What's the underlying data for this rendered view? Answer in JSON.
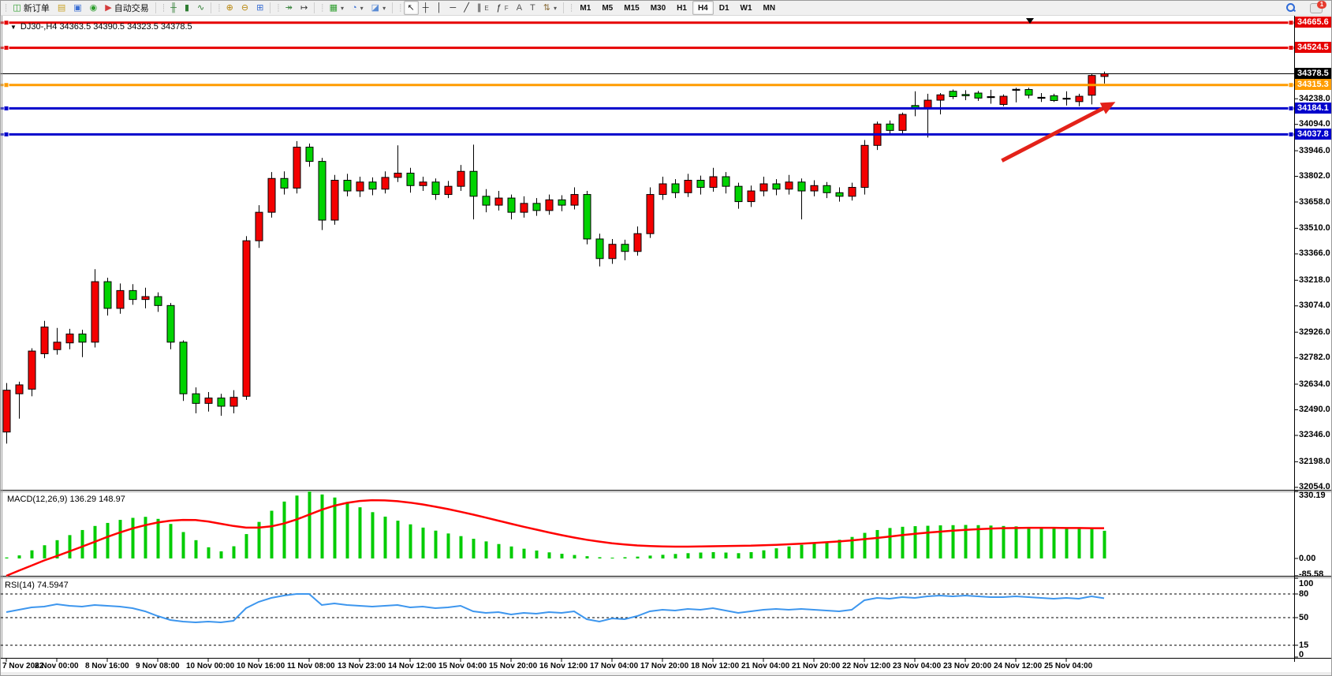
{
  "toolbar": {
    "groups": [
      {
        "name": "trade",
        "items": [
          {
            "name": "new-order-button",
            "glyph": "◫",
            "color": "#2e9e2e",
            "label": "新订单"
          },
          {
            "name": "market-depth-button",
            "glyph": "▤",
            "color": "#c9a227"
          },
          {
            "name": "terminal-button",
            "glyph": "▣",
            "color": "#3b6fd4"
          },
          {
            "name": "navigator-button",
            "glyph": "◉",
            "color": "#2e9e2e"
          },
          {
            "name": "autotrading-button",
            "glyph": "▶",
            "color": "#d43b3b",
            "label": "自动交易"
          }
        ]
      },
      {
        "name": "chart-type",
        "items": [
          {
            "name": "bar-chart-button",
            "glyph": "╫",
            "color": "#2e7d32"
          },
          {
            "name": "candlestick-button",
            "glyph": "▮",
            "color": "#2e7d32"
          },
          {
            "name": "line-chart-button",
            "glyph": "∿",
            "color": "#2e7d32"
          }
        ]
      },
      {
        "name": "zoom",
        "items": [
          {
            "name": "zoom-in-button",
            "glyph": "⊕",
            "color": "#b8860b"
          },
          {
            "name": "zoom-out-button",
            "glyph": "⊖",
            "color": "#b8860b"
          },
          {
            "name": "tile-windows-button",
            "glyph": "⊞",
            "color": "#3b6fd4"
          }
        ]
      },
      {
        "name": "scroll",
        "items": [
          {
            "name": "auto-scroll-button",
            "glyph": "↠",
            "color": "#2e7d32"
          },
          {
            "name": "chart-shift-button",
            "glyph": "↦",
            "color": "#333333"
          }
        ]
      },
      {
        "name": "add",
        "items": [
          {
            "name": "new-chart-button",
            "glyph": "▦",
            "color": "#2e9e2e",
            "dropdown": true
          },
          {
            "name": "profiles-button",
            "glyph": "◔",
            "color": "#3b6fd4",
            "dropdown": true
          },
          {
            "name": "templates-button",
            "glyph": "◪",
            "color": "#5a8bd4",
            "dropdown": true
          }
        ]
      },
      {
        "name": "draw",
        "items": [
          {
            "name": "cursor-button",
            "glyph": "↖",
            "color": "#222222",
            "active": true
          },
          {
            "name": "crosshair-button",
            "glyph": "┼",
            "color": "#222222"
          },
          {
            "name": "vertical-line-button",
            "glyph": "│",
            "color": "#222222"
          },
          {
            "name": "horizontal-line-button",
            "glyph": "─",
            "color": "#222222"
          },
          {
            "name": "trendline-button",
            "glyph": "╱",
            "color": "#222222"
          },
          {
            "name": "channel-button",
            "glyph": "∥",
            "color": "#222222",
            "sub": "E"
          },
          {
            "name": "fibonacci-button",
            "glyph": "ƒ",
            "color": "#222222",
            "sub": "F"
          },
          {
            "name": "text-button",
            "glyph": "A",
            "color": "#555555"
          },
          {
            "name": "label-button",
            "glyph": "T",
            "color": "#555555"
          },
          {
            "name": "arrows-button",
            "glyph": "⇅",
            "color": "#8a6d3b",
            "dropdown": true
          }
        ]
      },
      {
        "name": "timeframes",
        "items": [
          {
            "name": "timeframe-m1-button",
            "label": "M1"
          },
          {
            "name": "timeframe-m5-button",
            "label": "M5"
          },
          {
            "name": "timeframe-m15-button",
            "label": "M15"
          },
          {
            "name": "timeframe-m30-button",
            "label": "M30"
          },
          {
            "name": "timeframe-h1-button",
            "label": "H1"
          },
          {
            "name": "timeframe-h4-button",
            "label": "H4",
            "active": true
          },
          {
            "name": "timeframe-d1-button",
            "label": "D1"
          },
          {
            "name": "timeframe-w1-button",
            "label": "W1"
          },
          {
            "name": "timeframe-mn-button",
            "label": "MN"
          }
        ]
      }
    ],
    "right": {
      "alerts_badge": "1"
    }
  },
  "chart": {
    "dropdown_glyph": "▼",
    "title_display": "DJ30-,H4  34363.5 34390.5 34323.5 34378.5",
    "symbol": "DJ30-",
    "period": "H4",
    "ohlc": {
      "open": "34363.5",
      "high": "34390.5",
      "low": "34323.5",
      "close": "34378.5"
    }
  },
  "price_axis": {
    "badges": [
      {
        "label": "34665.6",
        "price": 34665.6,
        "bg": "#e60000"
      },
      {
        "label": "34524.5",
        "price": 34524.5,
        "bg": "#e60000"
      },
      {
        "label": "34378.5",
        "price": 34378.5,
        "bg": "#000000"
      },
      {
        "label": "34315.3",
        "price": 34315.3,
        "bg": "#ff9c00"
      },
      {
        "label": "34184.1",
        "price": 34184.1,
        "bg": "#0000cc"
      },
      {
        "label": "34037.8",
        "price": 34037.8,
        "bg": "#0000cc"
      }
    ],
    "ticks": [
      "34238.0",
      "34094.0",
      "33946.0",
      "33802.0",
      "33658.0",
      "33510.0",
      "33366.0",
      "33218.0",
      "33074.0",
      "32926.0",
      "32782.0",
      "32634.0",
      "32490.0",
      "32346.0",
      "32198.0",
      "32054.0"
    ]
  },
  "time_axis": {
    "labels": [
      "7 Nov 2022",
      "8 Nov 00:00",
      "8 Nov 16:00",
      "9 Nov 08:00",
      "10 Nov 00:00",
      "10 Nov 16:00",
      "11 Nov 08:00",
      "13 Nov 23:00",
      "14 Nov 12:00",
      "15 Nov 04:00",
      "15 Nov 20:00",
      "16 Nov 12:00",
      "17 Nov 04:00",
      "17 Nov 20:00",
      "18 Nov 12:00",
      "21 Nov 04:00",
      "21 Nov 20:00",
      "22 Nov 12:00",
      "23 Nov 04:00",
      "23 Nov 20:00",
      "24 Nov 12:00",
      "25 Nov 04:00"
    ]
  },
  "indicators": {
    "macd": {
      "label_display": "MACD(12,26,9) 136.29 148.97",
      "name": "MACD(12,26,9)",
      "main_value": "136.29",
      "signal_value": "148.97",
      "axis_labels": [
        {
          "label": "330.19",
          "v": 330.19
        },
        {
          "label": "0.00",
          "v": 0
        },
        {
          "label": "-85.58",
          "v": -85.58
        }
      ]
    },
    "rsi": {
      "label_display": "RSI(14) 74.5947",
      "name": "RSI(14)",
      "value": "74.5947",
      "axis_labels": [
        {
          "label": "100",
          "v": 100
        },
        {
          "label": "80",
          "v": 80
        },
        {
          "label": "50",
          "v": 50
        },
        {
          "label": "15",
          "v": 15
        },
        {
          "label": "0",
          "v": 0
        }
      ],
      "dashed_levels": [
        80,
        50,
        15
      ]
    }
  },
  "chart_data": {
    "type": "candlestick",
    "title": "DJ30-,H4",
    "ylim": [
      32040,
      34700
    ],
    "grid": false,
    "bull_color": "#f40000",
    "bear_color": "#00d300",
    "doji_color": "#000000",
    "candles": [
      [
        32365,
        32640,
        32300,
        32600
      ],
      [
        32580,
        32648,
        32440,
        32630
      ],
      [
        32606,
        32836,
        32566,
        32820
      ],
      [
        32805,
        32990,
        32780,
        32955
      ],
      [
        32828,
        32950,
        32800,
        32870
      ],
      [
        32866,
        32945,
        32830,
        32916
      ],
      [
        32916,
        32940,
        32786,
        32870
      ],
      [
        32870,
        33280,
        32840,
        33210
      ],
      [
        33210,
        33232,
        33020,
        33060
      ],
      [
        33060,
        33200,
        33030,
        33160
      ],
      [
        33160,
        33196,
        33080,
        33110
      ],
      [
        33110,
        33176,
        33060,
        33126
      ],
      [
        33126,
        33150,
        33040,
        33076
      ],
      [
        33076,
        33090,
        32830,
        32870
      ],
      [
        32870,
        32880,
        32540,
        32580
      ],
      [
        32580,
        32616,
        32470,
        32526
      ],
      [
        32526,
        32590,
        32480,
        32556
      ],
      [
        32556,
        32580,
        32456,
        32510
      ],
      [
        32510,
        32600,
        32470,
        32560
      ],
      [
        32566,
        33466,
        32546,
        33440
      ],
      [
        33440,
        33640,
        33400,
        33600
      ],
      [
        33600,
        33826,
        33570,
        33790
      ],
      [
        33790,
        33830,
        33700,
        33736
      ],
      [
        33736,
        34000,
        33706,
        33966
      ],
      [
        33966,
        33986,
        33856,
        33886
      ],
      [
        33886,
        33906,
        33500,
        33556
      ],
      [
        33556,
        33810,
        33530,
        33780
      ],
      [
        33780,
        33816,
        33690,
        33720
      ],
      [
        33720,
        33800,
        33686,
        33770
      ],
      [
        33770,
        33796,
        33696,
        33730
      ],
      [
        33730,
        33830,
        33706,
        33796
      ],
      [
        33796,
        33976,
        33770,
        33820
      ],
      [
        33820,
        33850,
        33710,
        33750
      ],
      [
        33750,
        33800,
        33720,
        33770
      ],
      [
        33770,
        33790,
        33670,
        33700
      ],
      [
        33700,
        33776,
        33680,
        33746
      ],
      [
        33746,
        33866,
        33720,
        33830
      ],
      [
        33830,
        33980,
        33560,
        33690
      ],
      [
        33690,
        33730,
        33600,
        33640
      ],
      [
        33640,
        33720,
        33610,
        33680
      ],
      [
        33680,
        33700,
        33560,
        33600
      ],
      [
        33600,
        33690,
        33570,
        33650
      ],
      [
        33650,
        33680,
        33580,
        33610
      ],
      [
        33610,
        33700,
        33586,
        33670
      ],
      [
        33670,
        33696,
        33606,
        33640
      ],
      [
        33640,
        33740,
        33616,
        33700
      ],
      [
        33700,
        33720,
        33420,
        33450
      ],
      [
        33450,
        33480,
        33296,
        33340
      ],
      [
        33340,
        33450,
        33310,
        33420
      ],
      [
        33420,
        33446,
        33330,
        33380
      ],
      [
        33380,
        33520,
        33356,
        33480
      ],
      [
        33480,
        33740,
        33456,
        33700
      ],
      [
        33700,
        33800,
        33670,
        33760
      ],
      [
        33760,
        33786,
        33680,
        33710
      ],
      [
        33710,
        33816,
        33686,
        33780
      ],
      [
        33780,
        33806,
        33700,
        33740
      ],
      [
        33740,
        33850,
        33716,
        33800
      ],
      [
        33800,
        33826,
        33706,
        33746
      ],
      [
        33746,
        33766,
        33620,
        33660
      ],
      [
        33660,
        33750,
        33630,
        33720
      ],
      [
        33720,
        33800,
        33690,
        33760
      ],
      [
        33760,
        33786,
        33696,
        33730
      ],
      [
        33730,
        33810,
        33700,
        33770
      ],
      [
        33770,
        33790,
        33560,
        33720
      ],
      [
        33720,
        33780,
        33690,
        33750
      ],
      [
        33750,
        33770,
        33680,
        33710
      ],
      [
        33710,
        33740,
        33660,
        33690
      ],
      [
        33690,
        33766,
        33666,
        33740
      ],
      [
        33740,
        34006,
        33700,
        33976
      ],
      [
        33976,
        34110,
        33950,
        34096
      ],
      [
        34096,
        34116,
        34040,
        34060
      ],
      [
        34060,
        34160,
        34036,
        34150
      ],
      [
        34200,
        34280,
        34140,
        34188
      ],
      [
        34188,
        34266,
        34020,
        34230
      ],
      [
        34230,
        34270,
        34150,
        34260
      ],
      [
        34280,
        34290,
        34236,
        34250
      ],
      [
        34262,
        34286,
        34230,
        34255
      ],
      [
        34270,
        34282,
        34226,
        34242
      ],
      [
        34250,
        34288,
        34210,
        34250
      ],
      [
        34206,
        34262,
        34196,
        34252
      ],
      [
        34291,
        34300,
        34218,
        34291
      ],
      [
        34290,
        34300,
        34240,
        34258
      ],
      [
        34246,
        34270,
        34220,
        34246
      ],
      [
        34255,
        34266,
        34220,
        34228
      ],
      [
        34241,
        34280,
        34200,
        34241
      ],
      [
        34222,
        34266,
        34196,
        34252
      ],
      [
        34258,
        34380,
        34206,
        34369
      ],
      [
        34363.5,
        34390.5,
        34323.5,
        34378.5
      ]
    ],
    "horizontal_lines": [
      {
        "price": 34665.6,
        "color": "#e60000",
        "width": 3
      },
      {
        "price": 34524.5,
        "color": "#e60000",
        "width": 3
      },
      {
        "price": 34315.3,
        "color": "#ff9c00",
        "width": 3
      },
      {
        "price": 34184.1,
        "color": "#0000cc",
        "width": 3
      },
      {
        "price": 34037.8,
        "color": "#0000cc",
        "width": 3
      }
    ],
    "current_price_line": {
      "price": 34378.5,
      "color": "#000000",
      "width": 1
    },
    "arrow_annotation": {
      "color": "#e32219",
      "start": {
        "candle": 78.9,
        "price": 33890
      },
      "end": {
        "candle": 87.9,
        "price": 34220
      }
    },
    "macd": {
      "ylim": [
        -85.58,
        330.19
      ],
      "histogram_color": "#00cc00",
      "signal_color": "#ff0000",
      "histogram": [
        5,
        15,
        40,
        65,
        90,
        115,
        140,
        160,
        175,
        190,
        200,
        205,
        195,
        170,
        130,
        90,
        55,
        35,
        60,
        120,
        180,
        235,
        280,
        310,
        330.19,
        315,
        300,
        278,
        252,
        228,
        206,
        186,
        168,
        152,
        137,
        123,
        110,
        97,
        84,
        71,
        59,
        48,
        39,
        30,
        23,
        17,
        11,
        6,
        4,
        6,
        9,
        14,
        18,
        22,
        26,
        29,
        31,
        29,
        26,
        31,
        40,
        50,
        59,
        67,
        75,
        83,
        92,
        106,
        126,
        140,
        150,
        156,
        159,
        161,
        163,
        164,
        165,
        164,
        162,
        160,
        158,
        155,
        152,
        155,
        150,
        147,
        150,
        136.29
      ],
      "signal": [
        -85.58,
        -60,
        -35,
        -10,
        12,
        35,
        58,
        82,
        106,
        128,
        148,
        164,
        177,
        186,
        190,
        189,
        182,
        171,
        160,
        152,
        152,
        158,
        172,
        192,
        216,
        240,
        260,
        274,
        283,
        287,
        286,
        282,
        275,
        266,
        255,
        243,
        230,
        216,
        201,
        186,
        171,
        156,
        142,
        128,
        115,
        103,
        92,
        83,
        75,
        69,
        64,
        61,
        59,
        58,
        58,
        59,
        60,
        61,
        62,
        63,
        65,
        67,
        70,
        73,
        76,
        80,
        84,
        89,
        95,
        101,
        108,
        115,
        121,
        127,
        132,
        137,
        141,
        144,
        147,
        149,
        150,
        151,
        151,
        151,
        150,
        150,
        149,
        148.97
      ]
    },
    "rsi": {
      "ylim": [
        0,
        100
      ],
      "line_color": "#3d96ee",
      "levels": [
        80,
        50,
        15
      ],
      "values": [
        57,
        60,
        63,
        64,
        67,
        65,
        64,
        66,
        65,
        64,
        62,
        58,
        52,
        47,
        45,
        44,
        45,
        44,
        46,
        62,
        70,
        75,
        78,
        80,
        80,
        66,
        68,
        66,
        65,
        64,
        65,
        66,
        63,
        64,
        62,
        63,
        65,
        58,
        56,
        57,
        54,
        56,
        55,
        57,
        56,
        58,
        48,
        45,
        49,
        48,
        52,
        58,
        60,
        59,
        61,
        60,
        62,
        59,
        56,
        58,
        60,
        61,
        60,
        61,
        60,
        59,
        58,
        60,
        72,
        75,
        74,
        76,
        75,
        77,
        78,
        77,
        78,
        77,
        76,
        76,
        77,
        76,
        75,
        74,
        75,
        74,
        77,
        74.5947
      ]
    }
  }
}
